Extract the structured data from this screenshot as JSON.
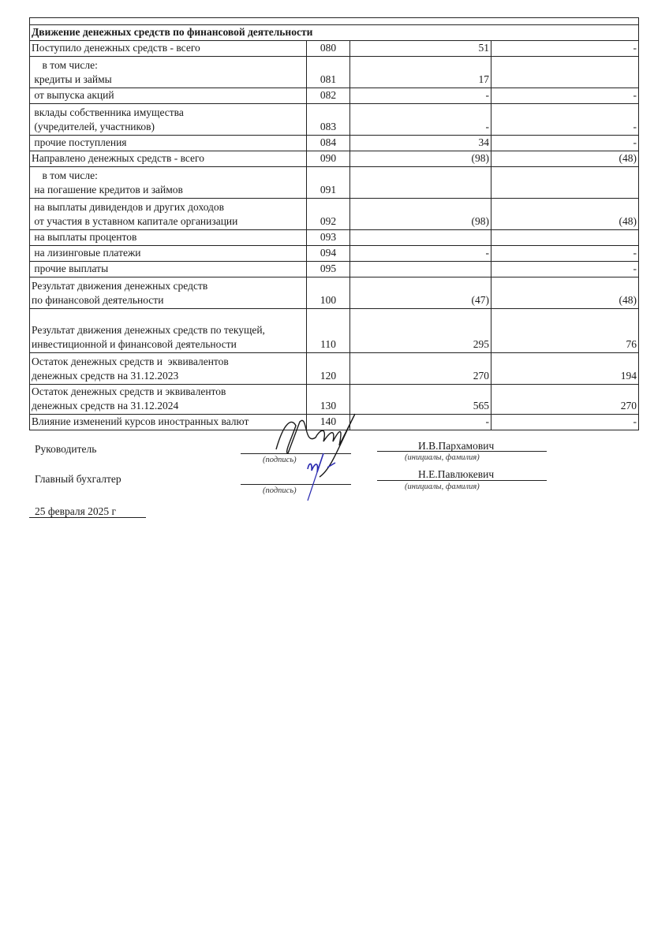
{
  "section_title": "Движение денежных средств по финансовой деятельности",
  "rows": [
    {
      "label": [
        "Поступило денежных средств - всего"
      ],
      "code": "080",
      "v1": "51",
      "v2": "-"
    },
    {
      "label": [
        "    в том числе:",
        " кредиты и займы"
      ],
      "code": "081",
      "v1": "17",
      "v2": ""
    },
    {
      "label": [
        " от выпуска акций"
      ],
      "code": "082",
      "v1": "-",
      "v2": "-"
    },
    {
      "label": [
        " вклады собственника имущества",
        " (учредителей, участников)"
      ],
      "code": "083",
      "v1": "-",
      "v2": "-"
    },
    {
      "label": [
        " прочие поступления"
      ],
      "code": "084",
      "v1": "34",
      "v2": "-"
    },
    {
      "label": [
        "Направлено денежных средств - всего"
      ],
      "code": "090",
      "v1": "(98)",
      "v2": "(48)"
    },
    {
      "label": [
        "    в том числе:",
        " на погашение кредитов и займов"
      ],
      "code": "091",
      "v1": "",
      "v2": ""
    },
    {
      "label": [
        " на выплаты дивидендов и других доходов",
        " от участия в уставном капитале организации"
      ],
      "code": "092",
      "v1": "(98)",
      "v2": "(48)"
    },
    {
      "label": [
        " на выплаты процентов"
      ],
      "code": "093",
      "v1": "",
      "v2": ""
    },
    {
      "label": [
        " на лизинговые платежи"
      ],
      "code": "094",
      "v1": "-",
      "v2": "-"
    },
    {
      "label": [
        " прочие выплаты"
      ],
      "code": "095",
      "v1": "",
      "v2": "-"
    },
    {
      "label": [
        "Результат движения денежных средств",
        "по финансовой деятельности"
      ],
      "code": "100",
      "v1": "(47)",
      "v2": "(48)"
    },
    {
      "label": [
        "Результат движения денежных средств по текущей,",
        "инвестиционной и финансовой деятельности"
      ],
      "code": "110",
      "v1": "295",
      "v2": "76"
    },
    {
      "label": [
        "Остаток денежных средств и  эквивалентов",
        "денежных средств на 31.12.2023"
      ],
      "code": "120",
      "v1": "270",
      "v2": "194"
    },
    {
      "label": [
        "Остаток денежных средств и эквивалентов",
        "денежных средств на 31.12.2024"
      ],
      "code": "130",
      "v1": "565",
      "v2": "270"
    },
    {
      "label": [
        "Влияние изменений курсов иностранных валют"
      ],
      "code": "140",
      "v1": "-",
      "v2": "-"
    }
  ],
  "signatures": {
    "head_label": "Руководитель",
    "head_name": "И.В.Пархамович",
    "accountant_label": "Главный бухгалтер",
    "accountant_name": "Н.Е.Павлюкевич",
    "signature_caption": "(подпись)",
    "name_caption": "(инициалы, фамилия)",
    "date": "25 февраля 2025 г"
  },
  "colors": {
    "ink": "#1a1a1a",
    "blue_ink": "#2a2ab0"
  }
}
